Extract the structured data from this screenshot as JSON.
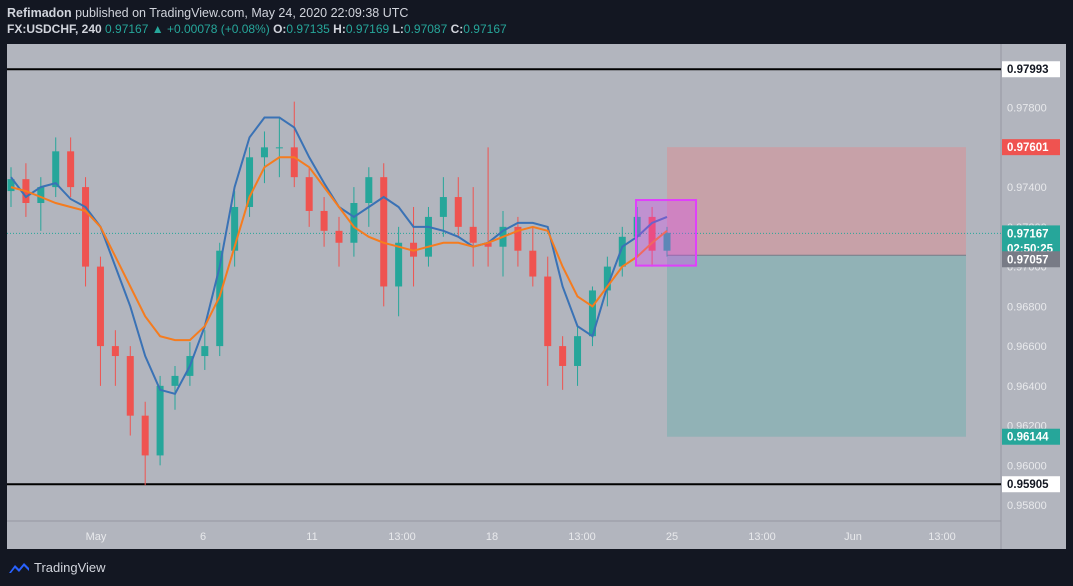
{
  "header": {
    "author": "Refimadon",
    "published_text": "published on TradingView.com, May 24, 2020 22:09:38 UTC",
    "symbol": "FX:USDCHF, 240",
    "last": "0.97167",
    "change": "▲ +0.00078 (+0.08%)",
    "o_label": "O:",
    "o_value": "0.97135",
    "h_label": "H:",
    "h_value": "0.97169",
    "l_label": "L:",
    "l_value": "0.97087",
    "c_label": "C:",
    "c_value": "0.97167"
  },
  "footer": {
    "brand": "TradingView"
  },
  "colors": {
    "background": "#b2b5be",
    "up": "#26a69a",
    "down": "#ef5350",
    "ma_fast": "#3a72b5",
    "ma_slow": "#f57c1f",
    "box": "#e040fb",
    "stop_zone": "#c8a0a6",
    "target_zone": "#8fb2b5"
  },
  "chart_data": {
    "type": "candlestick",
    "title": "",
    "ylim": [
      0.9572,
      0.9812
    ],
    "x_ticks": [
      "May",
      "6",
      "11",
      "13:00",
      "18",
      "13:00",
      "25",
      "13:00",
      "Jun",
      "13:00"
    ],
    "y_ticks": [
      "0.97800",
      "0.97600",
      "0.97400",
      "0.97200",
      "0.97000",
      "0.96800",
      "0.96600",
      "0.96400",
      "0.96200",
      "0.96000",
      "0.95800"
    ],
    "horizontal_lines": [
      {
        "value": 0.97993,
        "label": "0.97993"
      },
      {
        "value": 0.95905,
        "label": "0.95905"
      }
    ],
    "price_labels": [
      {
        "value": 0.97601,
        "label": "0.97601",
        "kind": "stop"
      },
      {
        "value": 0.97167,
        "label": "0.97167",
        "kind": "last"
      },
      {
        "value": 0.97131,
        "label": "02:50:25",
        "kind": "countdown"
      },
      {
        "value": 0.97057,
        "label": "0.97057",
        "kind": "entry"
      },
      {
        "value": 0.96144,
        "label": "0.96144",
        "kind": "target"
      }
    ],
    "position": {
      "entry": 0.97057,
      "stop": 0.97601,
      "target": 0.96144
    },
    "highlight_box": {
      "price_high": 0.97335,
      "price_low": 0.97005
    },
    "series": [
      {
        "type": "ma_fast",
        "values": [
          0.9745,
          0.9735,
          0.974,
          0.9742,
          0.9734,
          0.973,
          0.972,
          0.97,
          0.968,
          0.9655,
          0.9638,
          0.9636,
          0.965,
          0.967,
          0.97,
          0.974,
          0.9765,
          0.9775,
          0.9775,
          0.977,
          0.9755,
          0.9742,
          0.973,
          0.9725,
          0.973,
          0.9735,
          0.973,
          0.972,
          0.972,
          0.9718,
          0.9715,
          0.971,
          0.9712,
          0.9718,
          0.9722,
          0.9722,
          0.972,
          0.969,
          0.967,
          0.9665,
          0.969,
          0.971,
          0.9715,
          0.9722,
          0.9725
        ]
      },
      {
        "type": "ma_slow",
        "values": [
          0.974,
          0.9738,
          0.9735,
          0.9732,
          0.973,
          0.9728,
          0.972,
          0.9705,
          0.969,
          0.9675,
          0.9665,
          0.9663,
          0.9663,
          0.967,
          0.9685,
          0.971,
          0.9735,
          0.975,
          0.9755,
          0.9755,
          0.975,
          0.974,
          0.973,
          0.972,
          0.9715,
          0.9712,
          0.971,
          0.9708,
          0.971,
          0.9712,
          0.9712,
          0.971,
          0.9712,
          0.9715,
          0.9718,
          0.972,
          0.9718,
          0.97,
          0.9685,
          0.968,
          0.969,
          0.97,
          0.9705,
          0.9712,
          0.9718
        ]
      },
      {
        "type": "candles",
        "ohlc": [
          [
            0.9738,
            0.975,
            0.973,
            0.9744
          ],
          [
            0.9744,
            0.9752,
            0.9725,
            0.9732
          ],
          [
            0.9732,
            0.9745,
            0.9718,
            0.974
          ],
          [
            0.974,
            0.9765,
            0.9735,
            0.9758
          ],
          [
            0.9758,
            0.9765,
            0.9735,
            0.974
          ],
          [
            0.974,
            0.9745,
            0.969,
            0.97
          ],
          [
            0.97,
            0.9705,
            0.964,
            0.966
          ],
          [
            0.966,
            0.9668,
            0.964,
            0.9655
          ],
          [
            0.9655,
            0.966,
            0.9615,
            0.9625
          ],
          [
            0.9625,
            0.9632,
            0.959,
            0.9605
          ],
          [
            0.9605,
            0.9645,
            0.96,
            0.964
          ],
          [
            0.964,
            0.965,
            0.9628,
            0.9645
          ],
          [
            0.9645,
            0.9662,
            0.964,
            0.9655
          ],
          [
            0.9655,
            0.9668,
            0.9648,
            0.966
          ],
          [
            0.966,
            0.9712,
            0.9655,
            0.9708
          ],
          [
            0.9708,
            0.9738,
            0.97,
            0.973
          ],
          [
            0.973,
            0.976,
            0.9725,
            0.9755
          ],
          [
            0.9755,
            0.9768,
            0.9742,
            0.976
          ],
          [
            0.976,
            0.9775,
            0.9745,
            0.976
          ],
          [
            0.976,
            0.9783,
            0.974,
            0.9745
          ],
          [
            0.9745,
            0.975,
            0.972,
            0.9728
          ],
          [
            0.9728,
            0.9735,
            0.971,
            0.9718
          ],
          [
            0.9718,
            0.9725,
            0.97,
            0.9712
          ],
          [
            0.9712,
            0.974,
            0.9705,
            0.9732
          ],
          [
            0.9732,
            0.975,
            0.972,
            0.9745
          ],
          [
            0.9745,
            0.9752,
            0.968,
            0.969
          ],
          [
            0.969,
            0.972,
            0.9675,
            0.9712
          ],
          [
            0.9712,
            0.973,
            0.969,
            0.9705
          ],
          [
            0.9705,
            0.973,
            0.97,
            0.9725
          ],
          [
            0.9725,
            0.9745,
            0.9715,
            0.9735
          ],
          [
            0.9735,
            0.9745,
            0.9715,
            0.972
          ],
          [
            0.972,
            0.974,
            0.97,
            0.9712
          ],
          [
            0.9712,
            0.976,
            0.97,
            0.971
          ],
          [
            0.971,
            0.9728,
            0.9695,
            0.972
          ],
          [
            0.972,
            0.9725,
            0.97,
            0.9708
          ],
          [
            0.9708,
            0.972,
            0.969,
            0.9695
          ],
          [
            0.9695,
            0.9705,
            0.964,
            0.966
          ],
          [
            0.966,
            0.9665,
            0.9638,
            0.965
          ],
          [
            0.965,
            0.967,
            0.964,
            0.9665
          ],
          [
            0.9665,
            0.969,
            0.966,
            0.9688
          ],
          [
            0.9688,
            0.9705,
            0.968,
            0.97
          ],
          [
            0.97,
            0.972,
            0.9695,
            0.9715
          ],
          [
            0.9715,
            0.973,
            0.9705,
            0.9725
          ],
          [
            0.9725,
            0.973,
            0.97,
            0.9708
          ],
          [
            0.9708,
            0.972,
            0.9705,
            0.9717
          ]
        ]
      }
    ]
  }
}
